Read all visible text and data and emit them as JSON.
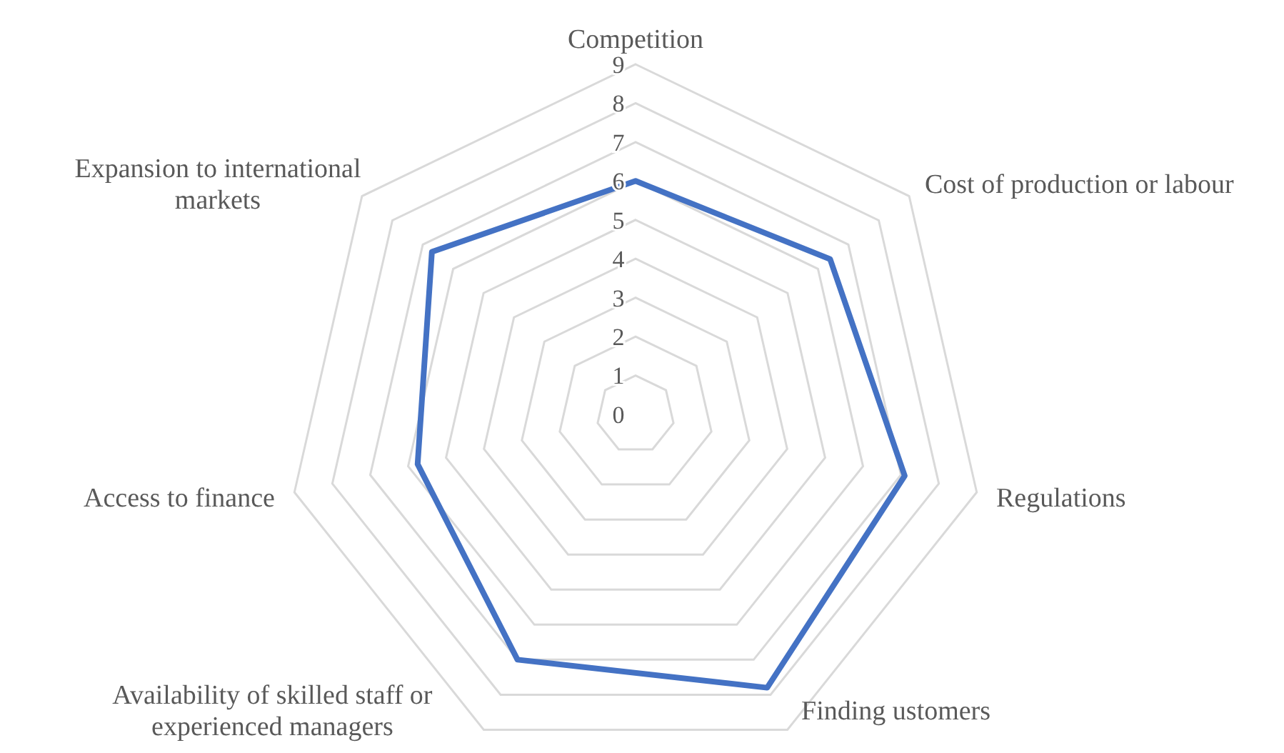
{
  "chart_data": {
    "type": "radar",
    "categories": [
      "Competition",
      "Cost of production or labour",
      "Regulations",
      "Finding ustomers",
      "Availability of skilled staff or experienced managers",
      "Access to finance",
      "Expansion to international markets"
    ],
    "series": [
      {
        "color": "#4472c4",
        "values": [
          6.0,
          6.4,
          7.1,
          7.8,
          7.0,
          5.75,
          6.7
        ]
      }
    ],
    "ylim": [
      0,
      9
    ],
    "yticks": [
      0,
      1,
      2,
      3,
      4,
      5,
      6,
      7,
      8,
      9
    ],
    "grid": true,
    "marker": "none",
    "line_style": "solid"
  }
}
